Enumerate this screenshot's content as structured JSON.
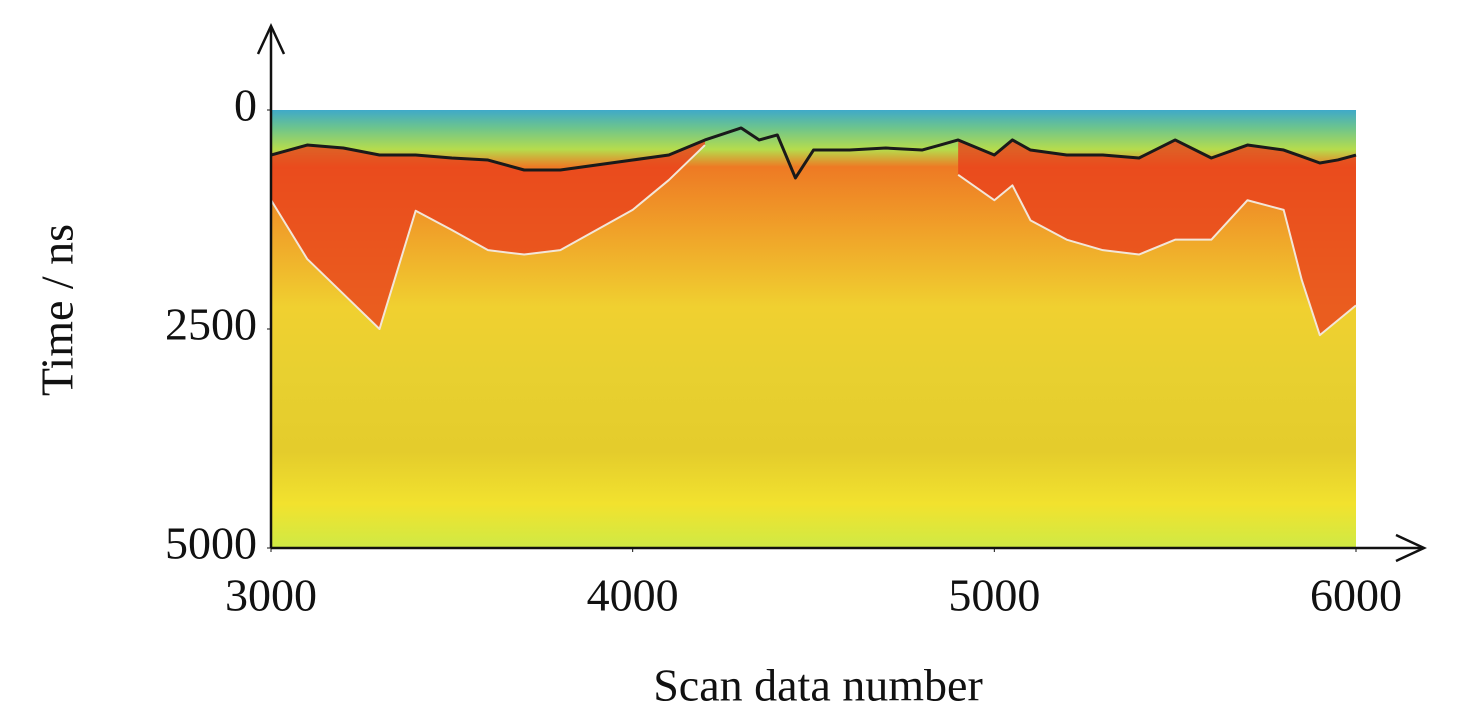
{
  "chart_data": {
    "type": "line",
    "x_label": "Scan data number",
    "y_label": "Time / ns",
    "x": [
      3000,
      3100,
      3200,
      3300,
      3400,
      3500,
      3600,
      3700,
      3800,
      3900,
      4000,
      4100,
      4200,
      4300,
      4350,
      4400,
      4450,
      4500,
      4600,
      4700,
      4800,
      4850,
      4900,
      5000,
      5050,
      5100,
      5200,
      5300,
      5400,
      5500,
      5600,
      5700,
      5800,
      5850,
      5900,
      5950,
      6000
    ],
    "series": [
      {
        "color": "#1a1a1a",
        "values": [
          514,
          400,
          434,
          514,
          514,
          548,
          571,
          685,
          685,
          628,
          571,
          514,
          342,
          205,
          342,
          285,
          776,
          457,
          457,
          434,
          457,
          400,
          342,
          514,
          342,
          457,
          514,
          514,
          548,
          342,
          548,
          400,
          457,
          530,
          605,
          570,
          514
        ]
      },
      {
        "color": "#f3e6d8",
        "values": [
          1027,
          1700,
          2100,
          2500,
          1150,
          1370,
          1600,
          1650,
          1600,
          1370,
          1140,
          800,
          400,
          null,
          null,
          null,
          null,
          null,
          null,
          null,
          null,
          null,
          740,
          1030,
          860,
          1260,
          1480,
          1600,
          1650,
          1480,
          1480,
          1030,
          1140,
          1940,
          2570,
          2400,
          2230
        ]
      }
    ],
    "xlim": [
      3000,
      6000
    ],
    "ylim": [
      5000,
      0
    ],
    "xticks": [
      3000,
      4000,
      5000,
      6000
    ],
    "yticks": [
      0,
      2500,
      5000
    ]
  }
}
